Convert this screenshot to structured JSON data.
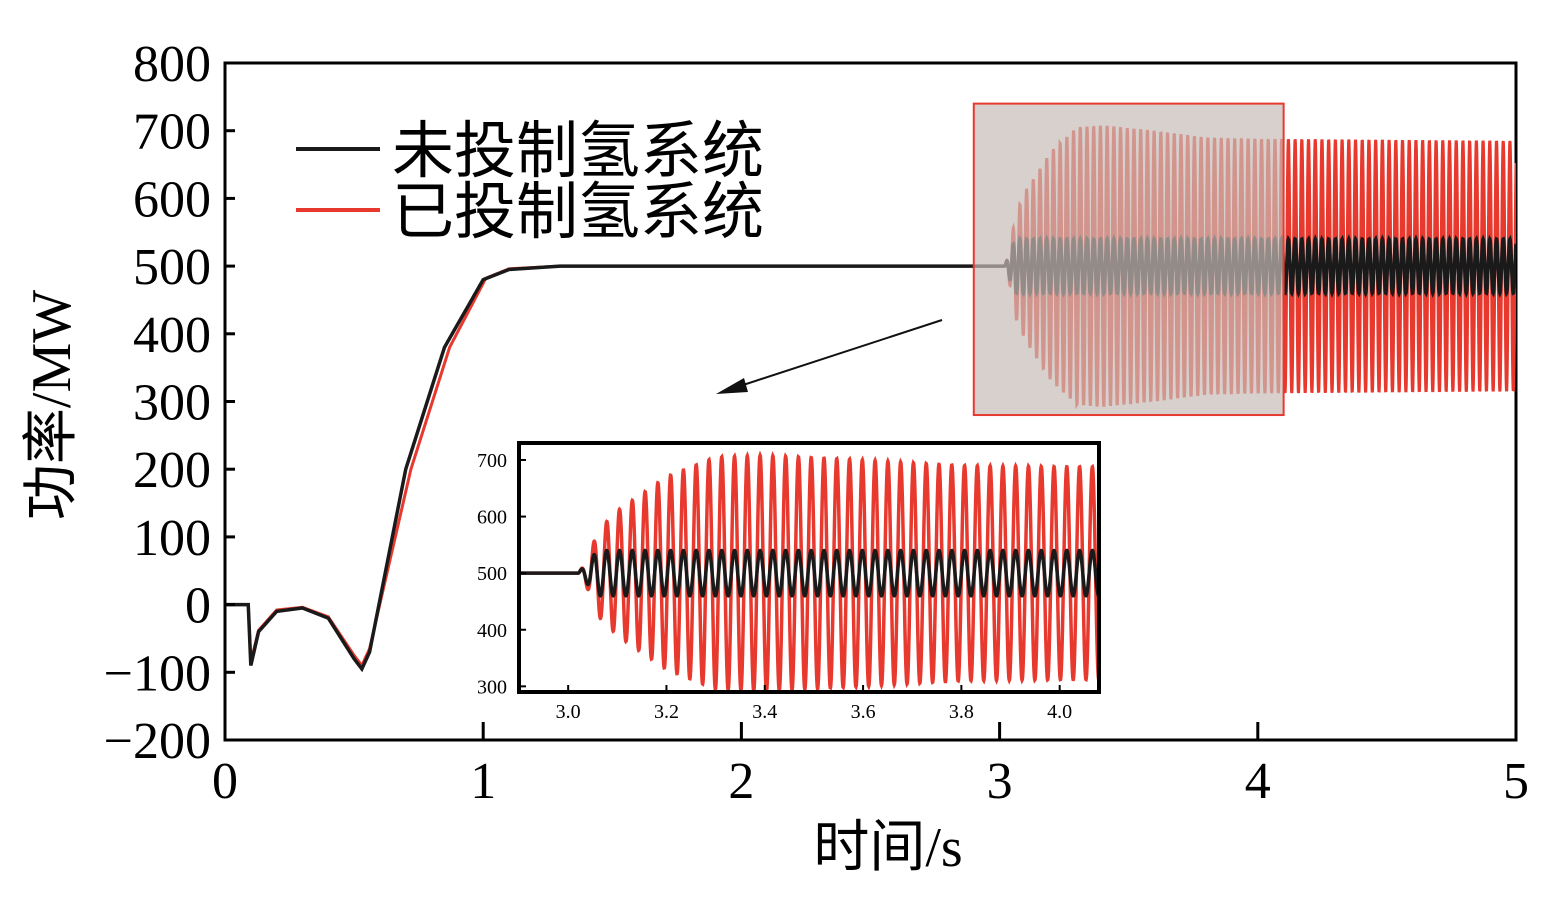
{
  "chart_data": [
    {
      "id": "main",
      "type": "line",
      "xlabel": "时间/s",
      "ylabel": "功率/MW",
      "xlim": [
        0,
        5
      ],
      "ylim": [
        -200,
        800
      ],
      "x_ticks": [
        "0",
        "1",
        "2",
        "3",
        "4",
        "5"
      ],
      "y_ticks": [
        "−200",
        "−100",
        "0",
        "100",
        "200",
        "300",
        "400",
        "500",
        "600",
        "700",
        "800"
      ],
      "legend_position": "top-left",
      "grid": false,
      "highlight_box": {
        "x": [
          2.9,
          4.1
        ],
        "y": [
          480,
          335
        ],
        "y_units": "MW",
        "y_range": [
          280,
          740
        ]
      },
      "series": [
        {
          "name": "未投制氢系统",
          "color": "#1a1a1a",
          "startup_curve": [
            [
              0,
              0
            ],
            [
              0.09,
              0
            ],
            [
              0.1,
              -90
            ],
            [
              0.13,
              -40
            ],
            [
              0.2,
              -10
            ],
            [
              0.3,
              -5
            ],
            [
              0.4,
              -20
            ],
            [
              0.5,
              -80
            ],
            [
              0.53,
              -95
            ],
            [
              0.56,
              -70
            ],
            [
              0.7,
              200
            ],
            [
              0.85,
              380
            ],
            [
              1.0,
              480
            ],
            [
              1.1,
              495
            ],
            [
              1.3,
              500
            ],
            [
              3.0,
              500
            ]
          ],
          "oscillation": {
            "start": 3.02,
            "center": 500,
            "amplitude": 40,
            "period": 0.026
          }
        },
        {
          "name": "已投制氢系统",
          "color": "#e8392f",
          "startup_curve": [
            [
              0,
              0
            ],
            [
              0.09,
              0
            ],
            [
              0.1,
              -85
            ],
            [
              0.13,
              -38
            ],
            [
              0.2,
              -8
            ],
            [
              0.3,
              -4
            ],
            [
              0.4,
              -18
            ],
            [
              0.5,
              -75
            ],
            [
              0.53,
              -90
            ],
            [
              0.56,
              -65
            ],
            [
              0.72,
              200
            ],
            [
              0.87,
              380
            ],
            [
              1.01,
              482
            ],
            [
              1.1,
              496
            ],
            [
              1.3,
              500
            ],
            [
              3.0,
              500
            ]
          ],
          "oscillation": {
            "start": 3.02,
            "center": 500,
            "amplitude_envelope": [
              [
                3.02,
                40
              ],
              [
                3.1,
                110
              ],
              [
                3.2,
                170
              ],
              [
                3.3,
                205
              ],
              [
                3.4,
                208
              ],
              [
                3.6,
                200
              ],
              [
                3.8,
                190
              ],
              [
                4.0,
                188
              ],
              [
                5.0,
                185
              ]
            ],
            "period": 0.026
          }
        }
      ]
    },
    {
      "id": "inset",
      "type": "line",
      "xlim": [
        2.9,
        4.08
      ],
      "ylim": [
        290,
        730
      ],
      "x_ticks": [
        "3.0",
        "3.2",
        "3.4",
        "3.6",
        "3.8",
        "4.0"
      ],
      "y_ticks": [
        "300",
        "400",
        "500",
        "600",
        "700"
      ]
    }
  ]
}
